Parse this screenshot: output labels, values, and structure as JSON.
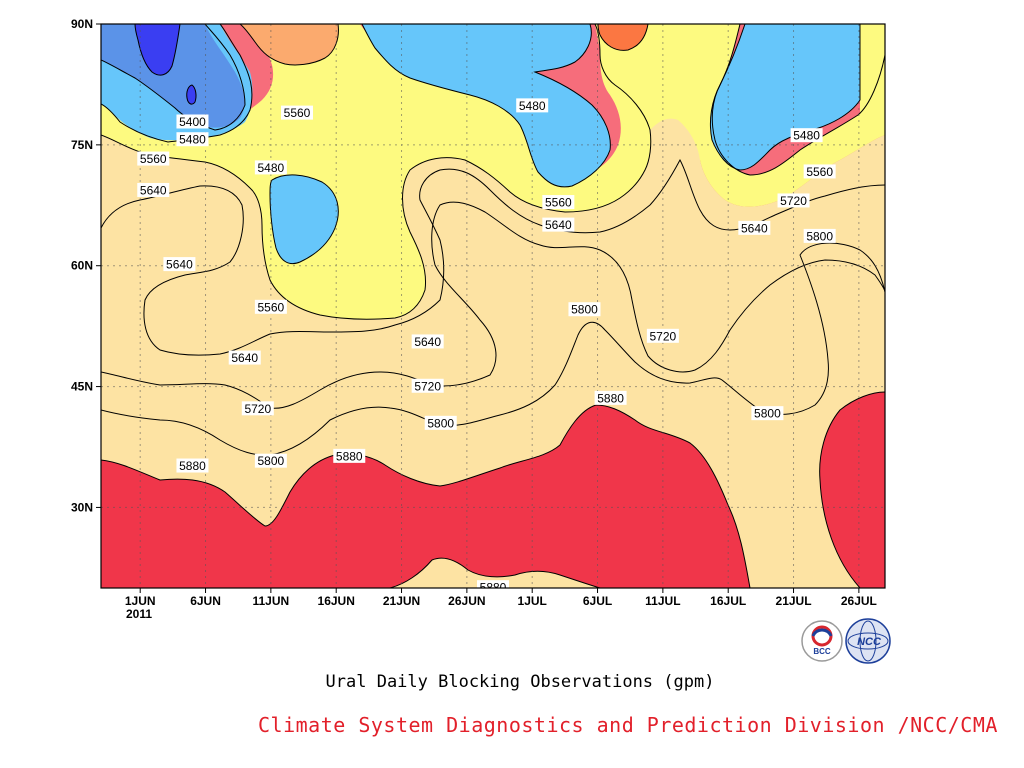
{
  "chart_data": {
    "type": "heatmap",
    "subtype": "filled-contour (time-latitude)",
    "title": "Ural Daily Blocking Observations (gpm)",
    "credit": "Climate System Diagnostics and Prediction Division /NCC/CMA",
    "x_axis": {
      "type": "date",
      "start": "2011-05-29",
      "end": "2011-07-28",
      "ticks": [
        {
          "label": "1JUN",
          "date": "2011-06-01"
        },
        {
          "label": "6JUN",
          "date": "2011-06-06"
        },
        {
          "label": "11JUN",
          "date": "2011-06-11"
        },
        {
          "label": "16JUN",
          "date": "2011-06-16"
        },
        {
          "label": "21JUN",
          "date": "2011-06-21"
        },
        {
          "label": "26JUN",
          "date": "2011-06-26"
        },
        {
          "label": "1JUL",
          "date": "2011-07-01"
        },
        {
          "label": "6JUL",
          "date": "2011-07-06"
        },
        {
          "label": "11JUL",
          "date": "2011-07-11"
        },
        {
          "label": "16JUL",
          "date": "2011-07-16"
        },
        {
          "label": "21JUL",
          "date": "2011-07-21"
        },
        {
          "label": "26JUL",
          "date": "2011-07-26"
        }
      ],
      "year_label": "2011"
    },
    "y_axis": {
      "range": [
        20,
        90
      ],
      "ticks": [
        {
          "label": "30N",
          "value": 30
        },
        {
          "label": "45N",
          "value": 45
        },
        {
          "label": "60N",
          "value": 60
        },
        {
          "label": "75N",
          "value": 75
        },
        {
          "label": "90N",
          "value": 90
        }
      ]
    },
    "grid": true,
    "contour_levels": [
      5400,
      5480,
      5560,
      5640,
      5720,
      5800,
      5880
    ],
    "colors": {
      "lt5400": "#3a3ef2",
      "5400_5480": "#5b93e8",
      "5480_5560": "#66c6fa",
      "5560_5640": "#fdfa80",
      "5640_5720": "#fde3a3",
      "5720_5800": "#fbaa6e",
      "5800_5880": "#fb7742",
      "5880_5960": "#f66d7b",
      "ge5960": "#f0364a"
    },
    "contour_labels": [
      {
        "text": "5400",
        "date": "2011-06-05",
        "lat": 77.9
      },
      {
        "text": "5480",
        "date": "2011-06-05",
        "lat": 75.7
      },
      {
        "text": "5560",
        "date": "2011-06-02",
        "lat": 73.3
      },
      {
        "text": "5640",
        "date": "2011-06-02",
        "lat": 69.4
      },
      {
        "text": "5480",
        "date": "2011-06-11",
        "lat": 72.2
      },
      {
        "text": "5560",
        "date": "2011-06-13",
        "lat": 79.0
      },
      {
        "text": "5640",
        "date": "2011-06-04",
        "lat": 60.2
      },
      {
        "text": "5560",
        "date": "2011-06-11",
        "lat": 54.9
      },
      {
        "text": "5640",
        "date": "2011-06-09",
        "lat": 48.6
      },
      {
        "text": "5720",
        "date": "2011-06-10",
        "lat": 42.3
      },
      {
        "text": "5800",
        "date": "2011-06-11",
        "lat": 35.8
      },
      {
        "text": "5880",
        "date": "2011-06-05",
        "lat": 35.2
      },
      {
        "text": "5880",
        "date": "2011-06-17",
        "lat": 36.4
      },
      {
        "text": "5640",
        "date": "2011-06-23",
        "lat": 50.6
      },
      {
        "text": "5720",
        "date": "2011-06-23",
        "lat": 45.1
      },
      {
        "text": "5800",
        "date": "2011-06-24",
        "lat": 40.5
      },
      {
        "text": "5880",
        "date": "2011-06-28",
        "lat": 20.1
      },
      {
        "text": "5480",
        "date": "2011-07-01",
        "lat": 79.9
      },
      {
        "text": "5560",
        "date": "2011-07-03",
        "lat": 67.9
      },
      {
        "text": "5640",
        "date": "2011-07-03",
        "lat": 65.1
      },
      {
        "text": "5800",
        "date": "2011-07-05",
        "lat": 54.6
      },
      {
        "text": "5880",
        "date": "2011-07-07",
        "lat": 43.6
      },
      {
        "text": "5720",
        "date": "2011-07-11",
        "lat": 51.3
      },
      {
        "text": "5640",
        "date": "2011-07-18",
        "lat": 64.7
      },
      {
        "text": "5720",
        "date": "2011-07-21",
        "lat": 68.1
      },
      {
        "text": "5480",
        "date": "2011-07-22",
        "lat": 76.2
      },
      {
        "text": "5560",
        "date": "2011-07-23",
        "lat": 71.7
      },
      {
        "text": "5800",
        "date": "2011-07-23",
        "lat": 63.7
      },
      {
        "text": "5800",
        "date": "2011-07-19",
        "lat": 41.7
      }
    ]
  },
  "logos": {
    "bcc": {
      "name": "bcc-logo",
      "text": "BCC"
    },
    "ncc": {
      "name": "ncc-logo",
      "text": "NCC"
    }
  }
}
